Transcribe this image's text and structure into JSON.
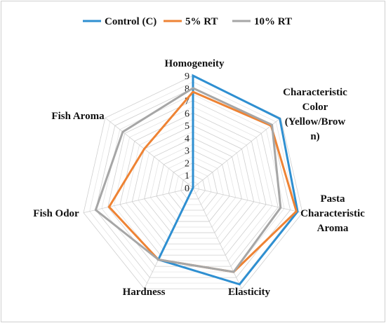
{
  "chart_data": {
    "type": "radar",
    "categories": [
      [
        "Homogeneity"
      ],
      [
        "Characteristic",
        "Color",
        "(Yellow/Brow",
        "n)"
      ],
      [
        "Pasta",
        "Characteristic",
        "Aroma"
      ],
      [
        "Elasticity"
      ],
      [
        "Hardness"
      ],
      [
        "Fish Odor"
      ],
      [
        "Fish Aroma"
      ]
    ],
    "range": [
      0,
      9
    ],
    "tick_labels": [
      "0",
      "1",
      "2",
      "3",
      "4",
      "5",
      "6",
      "7",
      "8",
      "9"
    ],
    "grid": true,
    "legend_position": "top",
    "series": [
      {
        "name": "Control (C)",
        "color": "#2e8fd1",
        "values": [
          9,
          8.9,
          8.6,
          8.6,
          6.4,
          0,
          0
        ]
      },
      {
        "name": "5% RT",
        "color": "#ee8334",
        "values": [
          7.7,
          8.0,
          8.5,
          7.5,
          6.4,
          6.9,
          5.0
        ]
      },
      {
        "name": "10% RT",
        "color": "#a6a6a6",
        "values": [
          8.0,
          8.1,
          7.2,
          7.5,
          6.4,
          8.0,
          7.2
        ]
      }
    ]
  }
}
